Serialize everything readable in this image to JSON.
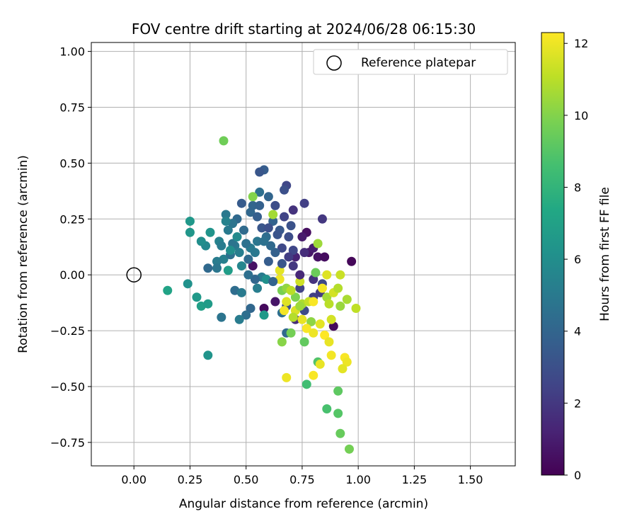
{
  "chart_data": {
    "type": "scatter",
    "title": "FOV centre drift starting at 2024/06/28 06:15:30",
    "xlabel": "Angular distance from reference (arcmin)",
    "ylabel": "Rotation from reference (arcmin)",
    "xlim": [
      -0.19,
      1.7
    ],
    "ylim": [
      -0.855,
      1.04
    ],
    "x_ticks": [
      0.0,
      0.25,
      0.5,
      0.75,
      1.0,
      1.25,
      1.5
    ],
    "x_tick_labels": [
      "0.00",
      "0.25",
      "0.50",
      "0.75",
      "1.00",
      "1.25",
      "1.50"
    ],
    "y_ticks": [
      -0.75,
      -0.5,
      -0.25,
      0.0,
      0.25,
      0.5,
      0.75,
      1.0
    ],
    "y_tick_labels": [
      "−0.75",
      "−0.50",
      "−0.25",
      "0.00",
      "0.25",
      "0.50",
      "0.75",
      "1.00"
    ],
    "grid": true,
    "legend": {
      "position": "top-right",
      "entries": [
        "Reference platepar"
      ]
    },
    "reference_point": {
      "x": 0.0,
      "y": 0.0,
      "label": "Reference platepar"
    },
    "colorbar": {
      "label": "Hours from first FF file",
      "colormap": "viridis",
      "range": [
        0,
        12.3
      ],
      "ticks": [
        0,
        2,
        4,
        6,
        8,
        10,
        12
      ],
      "tick_labels": [
        "0",
        "2",
        "4",
        "6",
        "8",
        "10",
        "12"
      ]
    },
    "points": [
      {
        "x": 0.77,
        "y": 0.19,
        "c": 0.5
      },
      {
        "x": 0.78,
        "y": 0.1,
        "c": 0.8
      },
      {
        "x": 0.82,
        "y": 0.08,
        "c": 0.6
      },
      {
        "x": 0.97,
        "y": 0.06,
        "c": 0.2
      },
      {
        "x": 0.85,
        "y": 0.08,
        "c": 0.4
      },
      {
        "x": 0.8,
        "y": 0.12,
        "c": 1.0
      },
      {
        "x": 0.53,
        "y": 0.04,
        "c": 0.6
      },
      {
        "x": 0.58,
        "y": -0.15,
        "c": 0.3
      },
      {
        "x": 0.89,
        "y": -0.23,
        "c": 0.3
      },
      {
        "x": 0.75,
        "y": 0.17,
        "c": 0.9
      },
      {
        "x": 0.72,
        "y": 0.08,
        "c": 1.2
      },
      {
        "x": 0.63,
        "y": -0.12,
        "c": 0.7
      },
      {
        "x": 0.84,
        "y": 0.25,
        "c": 2.0
      },
      {
        "x": 0.76,
        "y": 0.32,
        "c": 2.3
      },
      {
        "x": 0.71,
        "y": 0.29,
        "c": 1.8
      },
      {
        "x": 0.68,
        "y": 0.4,
        "c": 2.6
      },
      {
        "x": 0.67,
        "y": 0.26,
        "c": 2.5
      },
      {
        "x": 0.58,
        "y": 0.47,
        "c": 3.6
      },
      {
        "x": 0.56,
        "y": 0.46,
        "c": 3.3
      },
      {
        "x": 0.67,
        "y": 0.38,
        "c": 3.0
      },
      {
        "x": 0.76,
        "y": 0.1,
        "c": 1.6
      },
      {
        "x": 0.71,
        "y": 0.04,
        "c": 2.0
      },
      {
        "x": 0.74,
        "y": -0.06,
        "c": 2.4
      },
      {
        "x": 0.8,
        "y": -0.02,
        "c": 1.8
      },
      {
        "x": 0.84,
        "y": -0.04,
        "c": 2.7
      },
      {
        "x": 0.8,
        "y": -0.1,
        "c": 2.3
      },
      {
        "x": 0.72,
        "y": -0.2,
        "c": 1.6
      },
      {
        "x": 0.76,
        "y": -0.16,
        "c": 2.8
      },
      {
        "x": 0.68,
        "y": -0.14,
        "c": 3.0
      },
      {
        "x": 0.83,
        "y": -0.08,
        "c": 2.1
      },
      {
        "x": 0.7,
        "y": 0.22,
        "c": 3.1
      },
      {
        "x": 0.69,
        "y": 0.17,
        "c": 2.9
      },
      {
        "x": 0.65,
        "y": 0.2,
        "c": 3.4
      },
      {
        "x": 0.66,
        "y": 0.12,
        "c": 2.7
      },
      {
        "x": 0.71,
        "y": 0.11,
        "c": 2.6
      },
      {
        "x": 0.62,
        "y": 0.24,
        "c": 3.9
      },
      {
        "x": 0.63,
        "y": 0.1,
        "c": 3.8
      },
      {
        "x": 0.61,
        "y": 0.13,
        "c": 4.2
      },
      {
        "x": 0.59,
        "y": 0.17,
        "c": 4.4
      },
      {
        "x": 0.55,
        "y": 0.15,
        "c": 4.8
      },
      {
        "x": 0.52,
        "y": 0.12,
        "c": 5.0
      },
      {
        "x": 0.5,
        "y": 0.14,
        "c": 4.6
      },
      {
        "x": 0.49,
        "y": 0.2,
        "c": 4.3
      },
      {
        "x": 0.48,
        "y": 0.32,
        "c": 3.5
      },
      {
        "x": 0.52,
        "y": 0.28,
        "c": 4.1
      },
      {
        "x": 0.55,
        "y": 0.26,
        "c": 3.7
      },
      {
        "x": 0.57,
        "y": 0.21,
        "c": 3.3
      },
      {
        "x": 0.6,
        "y": 0.35,
        "c": 4.0
      },
      {
        "x": 0.56,
        "y": 0.37,
        "c": 4.5
      },
      {
        "x": 0.53,
        "y": 0.31,
        "c": 4.0
      },
      {
        "x": 0.46,
        "y": 0.25,
        "c": 4.2
      },
      {
        "x": 0.44,
        "y": 0.23,
        "c": 4.7
      },
      {
        "x": 0.41,
        "y": 0.27,
        "c": 4.9
      },
      {
        "x": 0.42,
        "y": 0.2,
        "c": 5.0
      },
      {
        "x": 0.41,
        "y": 0.24,
        "c": 5.4
      },
      {
        "x": 0.38,
        "y": 0.15,
        "c": 5.4
      },
      {
        "x": 0.39,
        "y": 0.13,
        "c": 5.1
      },
      {
        "x": 0.4,
        "y": 0.07,
        "c": 5.3
      },
      {
        "x": 0.43,
        "y": 0.09,
        "c": 4.6
      },
      {
        "x": 0.45,
        "y": 0.13,
        "c": 4.9
      },
      {
        "x": 0.47,
        "y": 0.1,
        "c": 5.2
      },
      {
        "x": 0.44,
        "y": 0.14,
        "c": 4.7
      },
      {
        "x": 0.37,
        "y": 0.06,
        "c": 5.1
      },
      {
        "x": 0.37,
        "y": 0.03,
        "c": 4.8
      },
      {
        "x": 0.33,
        "y": 0.03,
        "c": 4.2
      },
      {
        "x": 0.32,
        "y": 0.13,
        "c": 5.7
      },
      {
        "x": 0.3,
        "y": 0.15,
        "c": 6.0
      },
      {
        "x": 0.34,
        "y": 0.19,
        "c": 6.3
      },
      {
        "x": 0.42,
        "y": 0.02,
        "c": 6.8
      },
      {
        "x": 0.45,
        "y": -0.07,
        "c": 4.4
      },
      {
        "x": 0.48,
        "y": -0.08,
        "c": 5.0
      },
      {
        "x": 0.52,
        "y": -0.15,
        "c": 4.1
      },
      {
        "x": 0.5,
        "y": -0.18,
        "c": 4.5
      },
      {
        "x": 0.47,
        "y": -0.2,
        "c": 5.1
      },
      {
        "x": 0.39,
        "y": -0.19,
        "c": 4.7
      },
      {
        "x": 0.55,
        "y": -0.06,
        "c": 5.2
      },
      {
        "x": 0.57,
        "y": -0.01,
        "c": 5.0
      },
      {
        "x": 0.59,
        "y": -0.02,
        "c": 6.1
      },
      {
        "x": 0.58,
        "y": -0.18,
        "c": 6.6
      },
      {
        "x": 0.66,
        "y": -0.17,
        "c": 4.5
      },
      {
        "x": 0.68,
        "y": -0.26,
        "c": 4.2
      },
      {
        "x": 0.25,
        "y": 0.24,
        "c": 6.5
      },
      {
        "x": 0.25,
        "y": 0.19,
        "c": 6.4
      },
      {
        "x": 0.24,
        "y": -0.04,
        "c": 6.2
      },
      {
        "x": 0.28,
        "y": -0.1,
        "c": 6.6
      },
      {
        "x": 0.3,
        "y": -0.14,
        "c": 6.9
      },
      {
        "x": 0.33,
        "y": -0.13,
        "c": 6.7
      },
      {
        "x": 0.15,
        "y": -0.07,
        "c": 7.1
      },
      {
        "x": 0.33,
        "y": -0.36,
        "c": 6.3
      },
      {
        "x": 0.4,
        "y": 0.6,
        "c": 9.6
      },
      {
        "x": 0.53,
        "y": 0.35,
        "c": 10.0
      },
      {
        "x": 0.62,
        "y": 0.27,
        "c": 10.6
      },
      {
        "x": 0.66,
        "y": -0.07,
        "c": 9.8
      },
      {
        "x": 0.68,
        "y": -0.06,
        "c": 10.3
      },
      {
        "x": 0.72,
        "y": -0.1,
        "c": 9.9
      },
      {
        "x": 0.75,
        "y": -0.13,
        "c": 10.8
      },
      {
        "x": 0.78,
        "y": -0.12,
        "c": 11.2
      },
      {
        "x": 0.81,
        "y": 0.01,
        "c": 9.5
      },
      {
        "x": 0.82,
        "y": 0.14,
        "c": 10.5
      },
      {
        "x": 0.79,
        "y": -0.21,
        "c": 10.2
      },
      {
        "x": 0.76,
        "y": -0.3,
        "c": 9.3
      },
      {
        "x": 0.7,
        "y": -0.26,
        "c": 9.7
      },
      {
        "x": 0.66,
        "y": -0.3,
        "c": 10.1
      },
      {
        "x": 0.82,
        "y": -0.39,
        "c": 8.9
      },
      {
        "x": 0.77,
        "y": -0.49,
        "c": 8.5
      },
      {
        "x": 0.86,
        "y": -0.6,
        "c": 8.7
      },
      {
        "x": 0.91,
        "y": -0.62,
        "c": 9.0
      },
      {
        "x": 0.91,
        "y": -0.52,
        "c": 9.2
      },
      {
        "x": 0.92,
        "y": -0.71,
        "c": 9.4
      },
      {
        "x": 0.96,
        "y": -0.78,
        "c": 9.7
      },
      {
        "x": 0.86,
        "y": -0.1,
        "c": 10.6
      },
      {
        "x": 0.87,
        "y": -0.13,
        "c": 11.0
      },
      {
        "x": 0.89,
        "y": -0.08,
        "c": 11.5
      },
      {
        "x": 0.91,
        "y": -0.06,
        "c": 10.9
      },
      {
        "x": 0.92,
        "y": -0.14,
        "c": 10.4
      },
      {
        "x": 0.95,
        "y": -0.11,
        "c": 10.7
      },
      {
        "x": 0.99,
        "y": -0.15,
        "c": 11.1
      },
      {
        "x": 0.92,
        "y": 0.0,
        "c": 11.3
      },
      {
        "x": 0.74,
        "y": -0.03,
        "c": 11.4
      },
      {
        "x": 0.7,
        "y": -0.07,
        "c": 11.0
      },
      {
        "x": 0.65,
        "y": 0.02,
        "c": 11.8
      },
      {
        "x": 0.65,
        "y": -0.02,
        "c": 12.0
      },
      {
        "x": 0.68,
        "y": -0.12,
        "c": 11.7
      },
      {
        "x": 0.67,
        "y": -0.16,
        "c": 12.1
      },
      {
        "x": 0.72,
        "y": -0.16,
        "c": 11.6
      },
      {
        "x": 0.75,
        "y": -0.2,
        "c": 11.9
      },
      {
        "x": 0.77,
        "y": -0.24,
        "c": 12.2
      },
      {
        "x": 0.8,
        "y": -0.26,
        "c": 12.0
      },
      {
        "x": 0.83,
        "y": -0.22,
        "c": 11.8
      },
      {
        "x": 0.85,
        "y": -0.27,
        "c": 12.3
      },
      {
        "x": 0.87,
        "y": -0.3,
        "c": 11.9
      },
      {
        "x": 0.84,
        "y": -0.06,
        "c": 12.1
      },
      {
        "x": 0.86,
        "y": 0.0,
        "c": 11.7
      },
      {
        "x": 0.8,
        "y": -0.12,
        "c": 12.2
      },
      {
        "x": 0.68,
        "y": -0.46,
        "c": 12.0
      },
      {
        "x": 0.8,
        "y": -0.45,
        "c": 12.2
      },
      {
        "x": 0.83,
        "y": -0.4,
        "c": 11.9
      },
      {
        "x": 0.88,
        "y": -0.36,
        "c": 12.1
      },
      {
        "x": 0.94,
        "y": -0.37,
        "c": 12.2
      },
      {
        "x": 0.95,
        "y": -0.39,
        "c": 12.0
      },
      {
        "x": 0.93,
        "y": -0.42,
        "c": 11.8
      },
      {
        "x": 0.88,
        "y": -0.2,
        "c": 11.5
      },
      {
        "x": 0.74,
        "y": -0.14,
        "c": 10.5
      },
      {
        "x": 0.71,
        "y": -0.19,
        "c": 10.9
      },
      {
        "x": 0.6,
        "y": 0.06,
        "c": 3.6
      },
      {
        "x": 0.64,
        "y": 0.18,
        "c": 3.2
      },
      {
        "x": 0.69,
        "y": 0.08,
        "c": 2.2
      },
      {
        "x": 0.74,
        "y": 0.0,
        "c": 1.4
      },
      {
        "x": 0.54,
        "y": 0.1,
        "c": 4.9
      },
      {
        "x": 0.51,
        "y": 0.07,
        "c": 4.3
      },
      {
        "x": 0.48,
        "y": 0.04,
        "c": 5.6
      },
      {
        "x": 0.46,
        "y": 0.17,
        "c": 5.8
      },
      {
        "x": 0.43,
        "y": 0.11,
        "c": 6.0
      },
      {
        "x": 0.56,
        "y": 0.31,
        "c": 3.8
      },
      {
        "x": 0.6,
        "y": 0.21,
        "c": 3.0
      },
      {
        "x": 0.58,
        "y": 0.15,
        "c": 4.6
      },
      {
        "x": 0.63,
        "y": 0.31,
        "c": 2.9
      },
      {
        "x": 0.66,
        "y": 0.05,
        "c": 3.3
      },
      {
        "x": 0.62,
        "y": -0.03,
        "c": 3.9
      },
      {
        "x": 0.54,
        "y": -0.02,
        "c": 4.1
      },
      {
        "x": 0.51,
        "y": 0.0,
        "c": 4.5
      }
    ]
  }
}
